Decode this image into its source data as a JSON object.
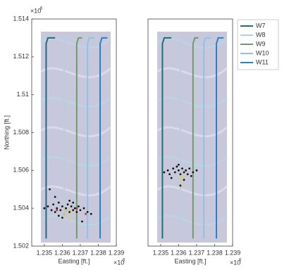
{
  "chart_data": [
    {
      "type": "line",
      "ylabel": "Northing [ft.]",
      "xlabel": "Easting [ft.]",
      "y_exponent": "×10",
      "y_exponent_power": "6",
      "x_exponent": "×10",
      "x_exponent_power": "6",
      "xlim": [
        1.2343,
        1.239
      ],
      "ylim": [
        1.502,
        1.514
      ],
      "xticks": [
        1.235,
        1.236,
        1.237,
        1.238,
        1.239
      ],
      "yticks": [
        1.502,
        1.504,
        1.506,
        1.508,
        1.51,
        1.512,
        1.514
      ],
      "series": [
        {
          "name": "W7",
          "color": "#1f6e78",
          "x": [
            1.2351,
            1.2351,
            1.2352,
            1.2356
          ],
          "y": [
            1.5024,
            1.5127,
            1.513,
            1.513
          ]
        },
        {
          "name": "W8",
          "color": "#b9cde0",
          "x": [
            1.2361,
            1.2361,
            1.2362,
            1.2365
          ],
          "y": [
            1.5024,
            1.5127,
            1.513,
            1.513
          ]
        },
        {
          "name": "W9",
          "color": "#6f9a6a",
          "x": [
            1.2368,
            1.2368,
            1.2369,
            1.2371
          ],
          "y": [
            1.5024,
            1.5127,
            1.513,
            1.513
          ]
        },
        {
          "name": "W10",
          "color": "#8fc3e6",
          "x": [
            1.2374,
            1.2374,
            1.2375,
            1.2378
          ],
          "y": [
            1.5024,
            1.5127,
            1.513,
            1.513
          ]
        },
        {
          "name": "W11",
          "color": "#2f7fc7",
          "x": [
            1.2381,
            1.2381,
            1.2382,
            1.2385
          ],
          "y": [
            1.5024,
            1.5127,
            1.513,
            1.513
          ]
        }
      ],
      "events": [
        {
          "color": "#111111",
          "x": [
            1.235,
            1.2352,
            1.2354,
            1.2355,
            1.2356,
            1.2357,
            1.2358,
            1.2359,
            1.236,
            1.2361,
            1.2362,
            1.2363,
            1.2364,
            1.2365,
            1.2366,
            1.2367,
            1.2368,
            1.2369,
            1.237,
            1.2372,
            1.2374,
            1.2376,
            1.2356,
            1.236,
            1.2364,
            1.2353,
            1.2371,
            1.2358,
            1.2366,
            1.2362
          ],
          "y": [
            1.504,
            1.5041,
            1.5039,
            1.5042,
            1.5038,
            1.504,
            1.5043,
            1.5039,
            1.5041,
            1.5037,
            1.504,
            1.5042,
            1.5038,
            1.5041,
            1.5039,
            1.504,
            1.5038,
            1.5041,
            1.5039,
            1.504,
            1.5038,
            1.5037,
            1.5046,
            1.5035,
            1.5044,
            1.505,
            1.5033,
            1.5036,
            1.5043,
            1.5039
          ]
        },
        {
          "color": "#e8d81c",
          "x": [
            1.2361,
            1.2363,
            1.2365,
            1.2364,
            1.2362
          ],
          "y": [
            1.5037,
            1.5036,
            1.5038,
            1.5034,
            1.5039
          ]
        },
        {
          "color": "#c0282a",
          "x": [
            1.2357,
            1.2368,
            1.2373
          ],
          "y": [
            1.5039,
            1.504,
            1.5037
          ]
        }
      ]
    },
    {
      "type": "line",
      "xlabel": "Easting [ft.]",
      "x_exponent": "×10",
      "x_exponent_power": "6",
      "xlim": [
        1.2343,
        1.239
      ],
      "ylim": [
        1.502,
        1.514
      ],
      "xticks": [
        1.235,
        1.236,
        1.237,
        1.238,
        1.239
      ],
      "legend": "outside-right",
      "series": [
        {
          "name": "W7",
          "color": "#1f6e78",
          "x": [
            1.2351,
            1.2351,
            1.2352,
            1.2356
          ],
          "y": [
            1.5024,
            1.5127,
            1.513,
            1.513
          ]
        },
        {
          "name": "W8",
          "color": "#b9cde0",
          "x": [
            1.2361,
            1.2361,
            1.2362,
            1.2365
          ],
          "y": [
            1.5024,
            1.5127,
            1.513,
            1.513
          ]
        },
        {
          "name": "W9",
          "color": "#6f9a6a",
          "x": [
            1.2368,
            1.2368,
            1.2369,
            1.2371
          ],
          "y": [
            1.5024,
            1.5127,
            1.513,
            1.513
          ]
        },
        {
          "name": "W10",
          "color": "#8fc3e6",
          "x": [
            1.2374,
            1.2374,
            1.2375,
            1.2378
          ],
          "y": [
            1.5024,
            1.5127,
            1.513,
            1.513
          ]
        },
        {
          "name": "W11",
          "color": "#2f7fc7",
          "x": [
            1.2381,
            1.2381,
            1.2382,
            1.2385
          ],
          "y": [
            1.5024,
            1.5127,
            1.513,
            1.513
          ]
        }
      ],
      "events": [
        {
          "color": "#111111",
          "x": [
            1.2352,
            1.2354,
            1.2355,
            1.2357,
            1.2358,
            1.2359,
            1.236,
            1.2361,
            1.2362,
            1.2363,
            1.2364,
            1.2365,
            1.2366,
            1.2368,
            1.237,
            1.2356,
            1.236,
            1.2363,
            1.2367,
            1.2361
          ],
          "y": [
            1.5059,
            1.506,
            1.5058,
            1.5061,
            1.5059,
            1.5062,
            1.506,
            1.5058,
            1.5061,
            1.5059,
            1.506,
            1.5058,
            1.5061,
            1.5059,
            1.506,
            1.5056,
            1.5063,
            1.5055,
            1.5057,
            1.5052
          ]
        },
        {
          "color": "#e8d81c",
          "x": [
            1.2361,
            1.2362,
            1.2363,
            1.2362
          ],
          "y": [
            1.5056,
            1.5054,
            1.5057,
            1.5052
          ]
        }
      ]
    }
  ]
}
